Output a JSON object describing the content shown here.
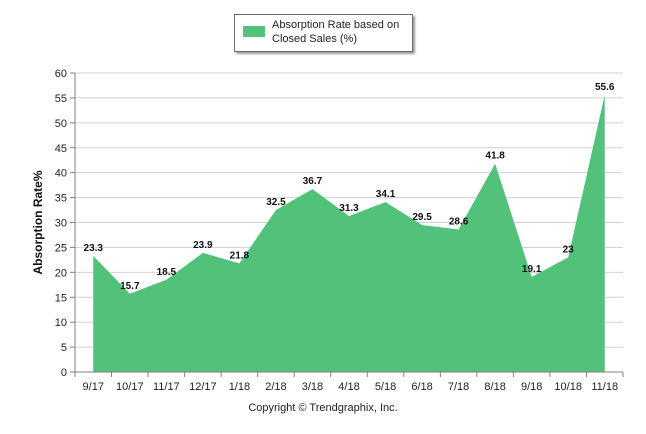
{
  "chart_data": {
    "type": "area",
    "categories": [
      "9/17",
      "10/17",
      "11/17",
      "12/17",
      "1/18",
      "2/18",
      "3/18",
      "4/18",
      "5/18",
      "6/18",
      "7/18",
      "8/18",
      "9/18",
      "10/18",
      "11/18"
    ],
    "series": [
      {
        "name": "Absorption Rate based on Closed Sales (%)",
        "values": [
          23.3,
          15.7,
          18.5,
          23.9,
          21.8,
          32.5,
          36.7,
          31.3,
          34.1,
          29.5,
          28.6,
          41.8,
          19.1,
          23,
          55.6
        ]
      }
    ],
    "data_labels": [
      "23.3",
      "15.7",
      "18.5",
      "23.9",
      "21.8",
      "32.5",
      "36.7",
      "31.3",
      "34.1",
      "29.5",
      "28.6",
      "41.8",
      "19.1",
      "23",
      "55.6"
    ],
    "ylabel": "Absorption Rate%",
    "xlabel": "",
    "ylim": [
      0,
      60
    ],
    "yticks": [
      0,
      5,
      10,
      15,
      20,
      25,
      30,
      35,
      40,
      45,
      50,
      55,
      60
    ],
    "grid": true,
    "legend_position": "top-center",
    "colors": {
      "area": "#52c17a",
      "grid": "#d0d0d0",
      "axis": "#808080"
    }
  },
  "legend": {
    "label": "Absorption Rate based on Closed Sales (%)"
  },
  "footer": {
    "copyright": "Copyright © Trendgraphix, Inc."
  }
}
